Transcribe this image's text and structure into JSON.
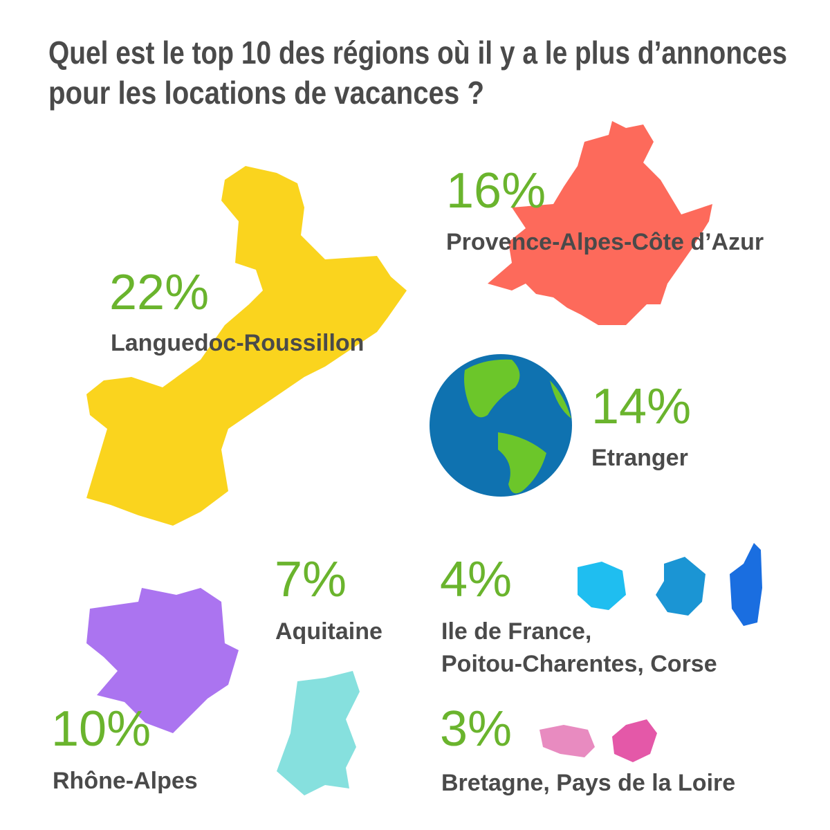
{
  "title": [
    "Quel est le top 10 des régions où il y a le plus d’annonces",
    "pour les locations de vacances ?"
  ],
  "items": [
    {
      "value": "22%",
      "label": [
        "Languedoc-Roussillon"
      ]
    },
    {
      "value": "16%",
      "label": [
        "Provence-Alpes-Côte d’Azur"
      ]
    },
    {
      "value": "14%",
      "label": [
        "Etranger"
      ]
    },
    {
      "value": "7%",
      "label": [
        "Aquitaine"
      ]
    },
    {
      "value": "4%",
      "label": [
        "Ile de France,",
        "Poitou-Charentes, Corse"
      ]
    },
    {
      "value": "10%",
      "label": [
        "Rhône-Alpes"
      ]
    },
    {
      "value": "3%",
      "label": [
        "Bretagne, Pays de la Loire"
      ]
    }
  ]
}
